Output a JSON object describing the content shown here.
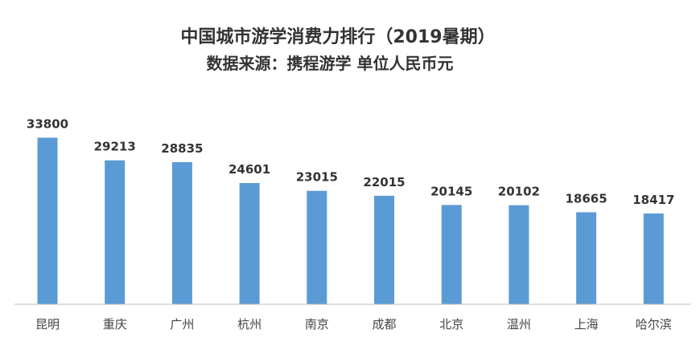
{
  "chart_data": {
    "type": "bar",
    "title": "中国城市游学消费力排行（2019暑期）",
    "subtitle": "数据来源：携程游学 单位人民币元",
    "categories": [
      "昆明",
      "重庆",
      "广州",
      "杭州",
      "南京",
      "成都",
      "北京",
      "温州",
      "上海",
      "哈尔滨"
    ],
    "values": [
      33800,
      29213,
      28835,
      24601,
      23015,
      22015,
      20145,
      20102,
      18665,
      18417
    ],
    "value_labels": [
      "33800",
      "29213",
      "28835",
      "24601",
      "23015",
      "22015",
      "20145",
      "20102",
      "18665",
      "18417"
    ],
    "xlabel": "",
    "ylabel": "",
    "ylim": [
      0,
      34000
    ],
    "grid": false,
    "data_labels": true,
    "colors": {
      "bar": "#5b9bd5",
      "axis": "#bfbfbf",
      "text": "#333333"
    }
  }
}
